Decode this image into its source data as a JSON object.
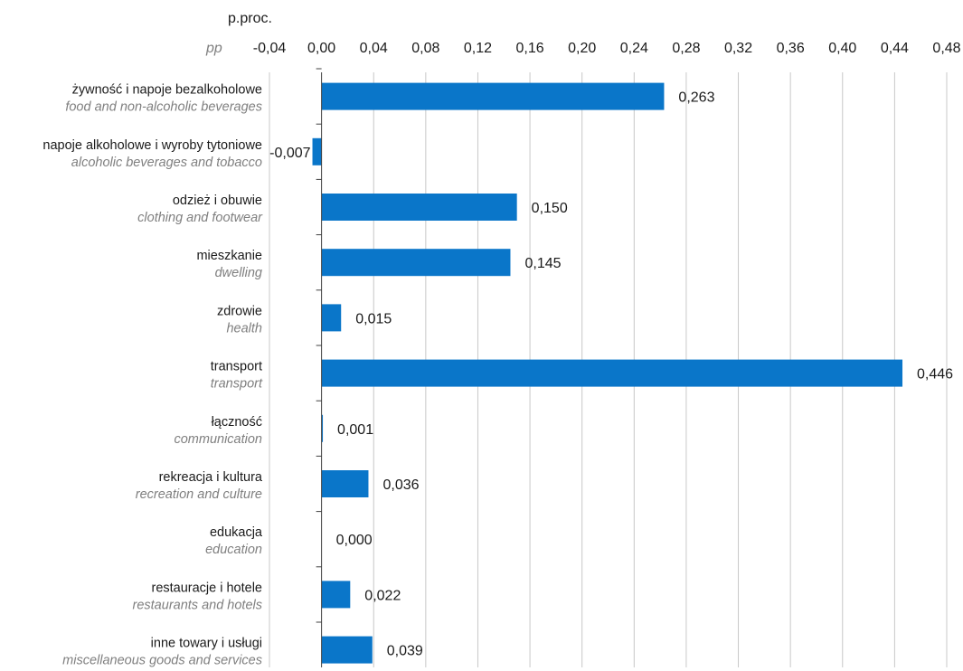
{
  "chart_data": {
    "type": "bar",
    "orientation": "horizontal",
    "unit_label": "p.proc.",
    "unit_label_en": "pp",
    "xlim": [
      -0.04,
      0.48
    ],
    "ticks": [
      "-0,04",
      "0,00",
      "0,04",
      "0,08",
      "0,12",
      "0,16",
      "0,20",
      "0,24",
      "0,28",
      "0,32",
      "0,36",
      "0,40",
      "0,44",
      "0,48"
    ],
    "tick_values": [
      -0.04,
      0.0,
      0.04,
      0.08,
      0.12,
      0.16,
      0.2,
      0.24,
      0.28,
      0.32,
      0.36,
      0.4,
      0.44,
      0.48
    ],
    "grid": true,
    "bar_color": "#0a76c9",
    "categories": [
      {
        "pl": "żywność i napoje bezalkoholowe",
        "en": "food and non-alcoholic beverages",
        "value": 0.263,
        "label": "0,263"
      },
      {
        "pl": "napoje alkoholowe i wyroby tytoniowe",
        "en": "alcoholic beverages and tobacco",
        "value": -0.007,
        "label": "-0,007"
      },
      {
        "pl": "odzież i obuwie",
        "en": "clothing and footwear",
        "value": 0.15,
        "label": "0,150"
      },
      {
        "pl": "mieszkanie",
        "en": "dwelling",
        "value": 0.145,
        "label": "0,145"
      },
      {
        "pl": "zdrowie",
        "en": "health",
        "value": 0.015,
        "label": "0,015"
      },
      {
        "pl": "transport",
        "en": "transport",
        "value": 0.446,
        "label": "0,446"
      },
      {
        "pl": "łączność",
        "en": "communication",
        "value": 0.001,
        "label": "0,001"
      },
      {
        "pl": "rekreacja i kultura",
        "en": "recreation and culture",
        "value": 0.036,
        "label": "0,036"
      },
      {
        "pl": "edukacja",
        "en": "education",
        "value": 0.0,
        "label": "0,000"
      },
      {
        "pl": "restauracje i hotele",
        "en": "restaurants and hotels",
        "value": 0.022,
        "label": "0,022"
      },
      {
        "pl": "inne towary i usługi",
        "en": "miscellaneous goods and services",
        "value": 0.039,
        "label": "0,039"
      }
    ]
  }
}
